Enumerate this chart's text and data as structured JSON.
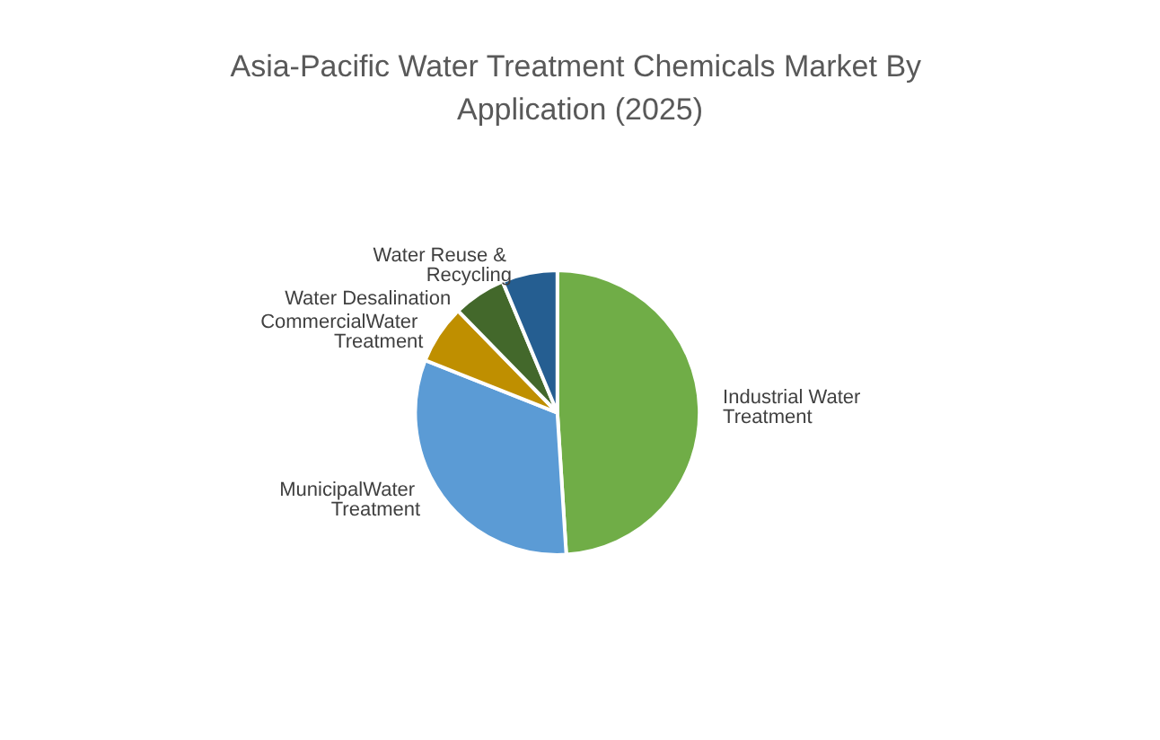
{
  "chart_data": {
    "type": "pie",
    "title": "Asia-Pacific Water Treatment Chemicals Market By Application (2025)",
    "categories": [
      "Industrial Water Treatment",
      "MunicipalWater Treatment",
      "CommercialWater Treatment",
      "Water Desalination",
      "Water Reuse & Recycling"
    ],
    "values": [
      49,
      32,
      6.7,
      6,
      6.3
    ],
    "colors": [
      "#70ad47",
      "#5b9bd5",
      "#bf8f00",
      "#43682b",
      "#255e91"
    ],
    "legend": false
  }
}
